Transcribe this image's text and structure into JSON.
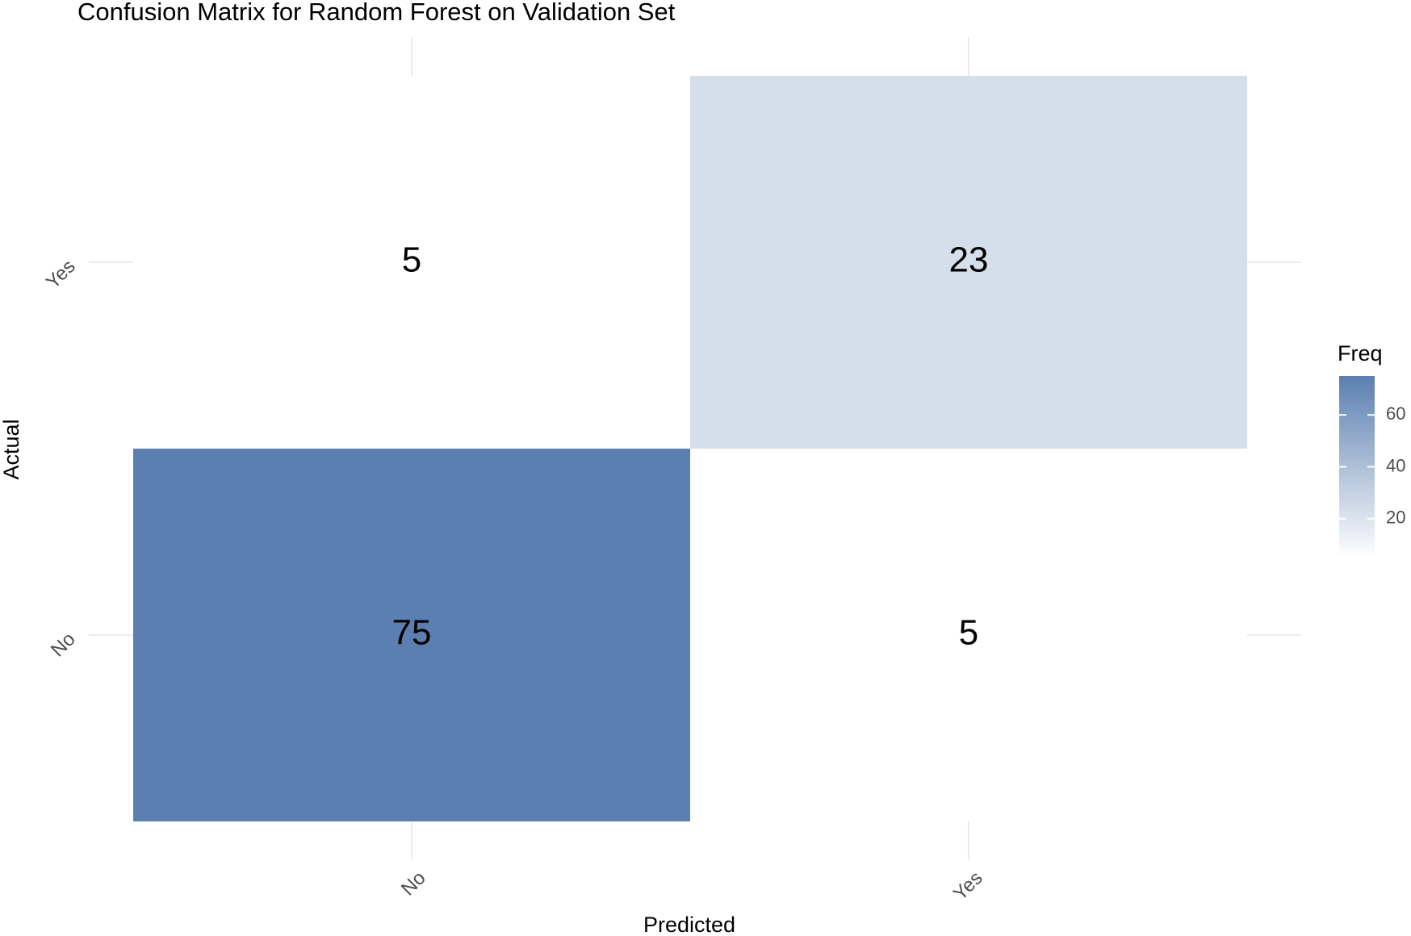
{
  "chart_data": {
    "type": "heatmap",
    "title": "Confusion Matrix for Random Forest on Validation Set",
    "x_label": "Predicted",
    "y_label": "Actual",
    "x_categories": [
      "No",
      "Yes"
    ],
    "y_categories": [
      "No",
      "Yes"
    ],
    "values": [
      [
        75,
        5
      ],
      [
        5,
        23
      ]
    ],
    "legend_title": "Freq",
    "color_low": "#ffffff",
    "color_high": "#5b7fb0",
    "colorbar_lim": [
      5,
      75
    ],
    "colorbar_ticks": [
      20,
      40,
      60
    ],
    "grid": true
  }
}
